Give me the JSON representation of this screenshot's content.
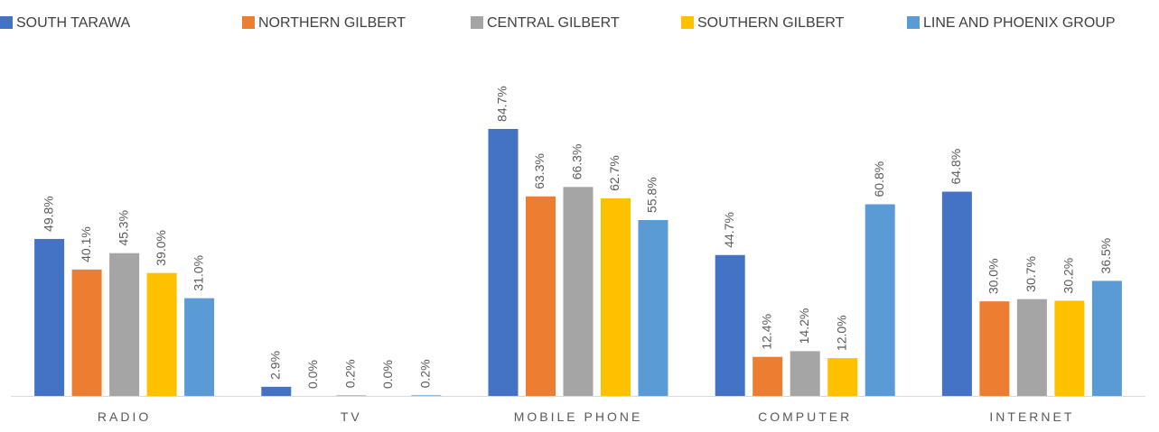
{
  "chart_data": {
    "type": "bar",
    "categories": [
      "RADIO",
      "TV",
      "MOBILE PHONE",
      "COMPUTER",
      "INTERNET"
    ],
    "series": [
      {
        "name": "SOUTH TARAWA",
        "color": "#4472c4",
        "values": [
          49.8,
          2.9,
          84.7,
          44.7,
          64.8
        ],
        "value_labels": [
          "49.8%",
          "2.9%",
          "84.7%",
          "44.7%",
          "64.8%"
        ]
      },
      {
        "name": "NORTHERN GILBERT",
        "color": "#ed7d31",
        "values": [
          40.1,
          0.0,
          63.3,
          12.4,
          30.0
        ],
        "value_labels": [
          "40.1%",
          "0.0%",
          "63.3%",
          "12.4%",
          "30.0%"
        ]
      },
      {
        "name": "CENTRAL GILBERT",
        "color": "#a5a5a5",
        "values": [
          45.3,
          0.2,
          66.3,
          14.2,
          30.7
        ],
        "value_labels": [
          "45.3%",
          "0.2%",
          "66.3%",
          "14.2%",
          "30.7%"
        ]
      },
      {
        "name": "SOUTHERN GILBERT",
        "color": "#ffc000",
        "values": [
          39.0,
          0.0,
          62.7,
          12.0,
          30.2
        ],
        "value_labels": [
          "39.0%",
          "0.0%",
          "62.7%",
          "12.0%",
          "30.2%"
        ]
      },
      {
        "name": "LINE AND PHOENIX GROUP",
        "color": "#5b9bd5",
        "values": [
          31.0,
          0.2,
          55.8,
          60.8,
          36.5
        ],
        "value_labels": [
          "31.0%",
          "0.2%",
          "55.8%",
          "60.8%",
          "36.5%"
        ]
      }
    ],
    "legend": "top"
  }
}
